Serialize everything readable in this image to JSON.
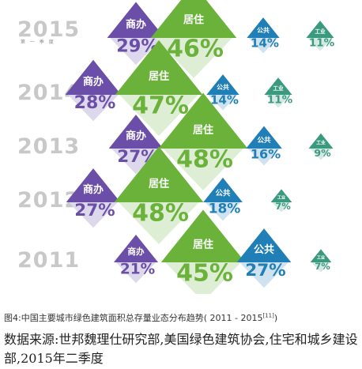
{
  "chart_data": {
    "type": "proportional-triangle",
    "categories_label": [
      "商办",
      "居住",
      "公共",
      "工业"
    ],
    "category_colors": [
      "#6b4ea8",
      "#6bb23a",
      "#1f7fb6",
      "#3a9a7e"
    ],
    "rows": [
      {
        "year": "2015",
        "subtitle": "第 一 季 度",
        "values": [
          29,
          46,
          14,
          11
        ],
        "labels": [
          "29%",
          "46%",
          "14%",
          "11%"
        ]
      },
      {
        "year": "2014",
        "subtitle": "",
        "values": [
          28,
          47,
          14,
          11
        ],
        "labels": [
          "28%",
          "47%",
          "14%",
          "11%"
        ]
      },
      {
        "year": "2013",
        "subtitle": "",
        "values": [
          27,
          48,
          16,
          9
        ],
        "labels": [
          "27%",
          "48%",
          "16%",
          "9%"
        ]
      },
      {
        "year": "2012",
        "subtitle": "",
        "values": [
          27,
          48,
          18,
          7
        ],
        "labels": [
          "27%",
          "48%",
          "18%",
          "7%"
        ]
      },
      {
        "year": "2011",
        "subtitle": "",
        "values": [
          21,
          45,
          27,
          7
        ],
        "labels": [
          "21%",
          "45%",
          "27%",
          "7%"
        ]
      }
    ]
  },
  "caption": {
    "text": "图4:中国主要城市绿色建筑面积总存量业态分布趋势( 2011 - 2015",
    "ref": "[11]",
    "end": ")"
  },
  "source": "数据来源:世邦魏理仕研究部,美国绿色建筑协会,住宅和城乡建设部,2015年二季度"
}
